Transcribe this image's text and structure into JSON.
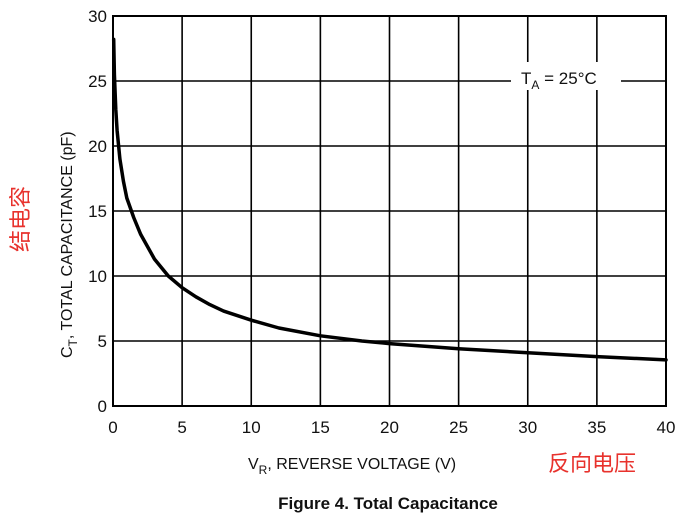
{
  "chart_data": {
    "type": "line",
    "title": "Figure 4. Total Capacitance",
    "xlabel": {
      "main": "V",
      "sub": "R",
      "rest": ", REVERSE VOLTAGE (V)"
    },
    "ylabel": {
      "main": "C",
      "sub": "T",
      "rest": ", TOTAL CAPACITANCE (pF)"
    },
    "xlim": [
      0,
      40
    ],
    "ylim": [
      0,
      30
    ],
    "x_ticks": [
      "0",
      "5",
      "10",
      "15",
      "20",
      "25",
      "30",
      "35",
      "40"
    ],
    "y_ticks": [
      "0",
      "5",
      "10",
      "15",
      "20",
      "25",
      "30"
    ],
    "grid": true,
    "annotation": {
      "main": "T",
      "sub": "A",
      "rest": " = 25°C"
    },
    "series": [
      {
        "x": [
          0.05,
          0.1,
          0.2,
          0.3,
          0.5,
          0.75,
          1,
          1.5,
          2,
          3,
          4,
          5,
          6,
          7,
          8,
          10,
          12,
          15,
          18,
          20,
          25,
          30,
          35,
          40
        ],
        "y": [
          28.2,
          25.5,
          22.8,
          21.2,
          19.0,
          17.3,
          16.0,
          14.5,
          13.2,
          11.3,
          10.0,
          9.1,
          8.4,
          7.8,
          7.3,
          6.6,
          6.0,
          5.4,
          5.0,
          4.8,
          4.4,
          4.1,
          3.8,
          3.55
        ]
      }
    ]
  },
  "annotations_cn": {
    "y_axis": "结电容",
    "x_axis": "反向电压"
  },
  "colors": {
    "line": "#000000",
    "grid": "#000000",
    "annotation_red": "#e8322d"
  }
}
